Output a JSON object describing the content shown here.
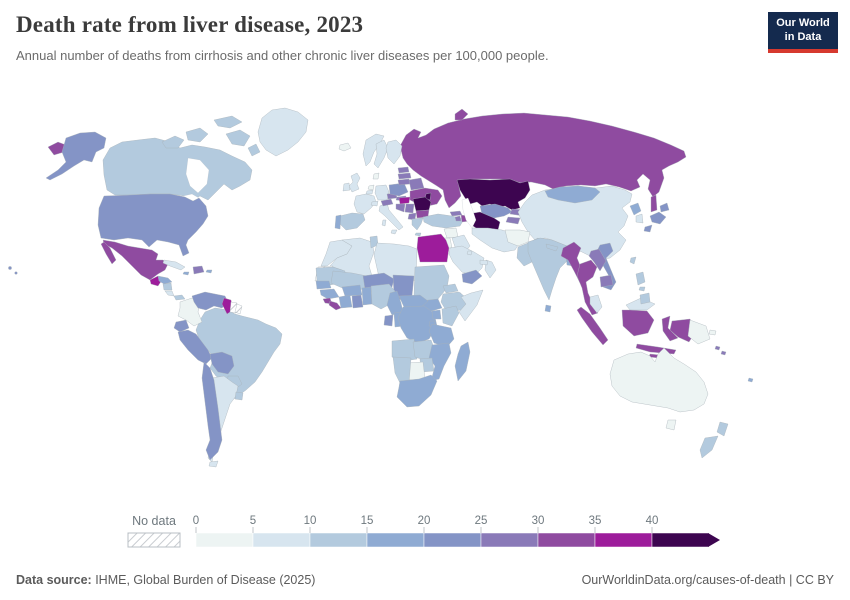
{
  "header": {
    "title": "Death rate from liver disease, 2023",
    "subtitle": "Annual number of deaths from cirrhosis and other chronic liver diseases per 100,000 people.",
    "logo": {
      "line1": "Our World",
      "line2": "in Data"
    }
  },
  "legend": {
    "no_data_label": "No data",
    "ticks": [
      "0",
      "5",
      "10",
      "15",
      "20",
      "25",
      "30",
      "35",
      "40"
    ]
  },
  "footer": {
    "source_label": "Data source:",
    "source_text": " IHME, Global Burden of Disease (2025)",
    "right_text": "OurWorldinData.org/causes-of-death | CC BY"
  },
  "chart_data": {
    "type": "choropleth",
    "title": "Death rate from liver disease, 2023",
    "subtitle": "Annual number of deaths from cirrhosis and other chronic liver diseases per 100,000 people.",
    "unit": "deaths per 100,000 people",
    "year": 2023,
    "legend_bins": [
      "0–5",
      "5–10",
      "10–15",
      "15–20",
      "20–25",
      "25–30",
      "30–35",
      "35–40",
      "40+"
    ],
    "palette": [
      "#edf4f3",
      "#d7e5ef",
      "#b3cade",
      "#8fabd3",
      "#8494c6",
      "#8a7ab8",
      "#8f4ba0",
      "#9d1c9b",
      "#3d0550"
    ],
    "no_data": {
      "label": "No data",
      "fill": "hatched"
    },
    "brand": {
      "navy": "#142a4e",
      "red": "#d6392f"
    },
    "countries": {
      "Canada": 2,
      "Greenland": 1,
      "United States": 4,
      "Mexico": 6,
      "Guatemala": 7,
      "Honduras": 3,
      "Nicaragua": 2,
      "Costa Rica": 1,
      "Panama": 2,
      "Cuba": 1,
      "Haiti": 5,
      "Jamaica": 3,
      "Puerto Rico": 3,
      "Colombia": 0,
      "Venezuela": 4,
      "Guyana": 7,
      "Suriname": "nd",
      "French Guiana": "nd",
      "Ecuador": 4,
      "Peru": 4,
      "Brazil": 2,
      "Bolivia": 4,
      "Paraguay": 2,
      "Chile": 4,
      "Argentina": 1,
      "Uruguay": 2,
      "Iceland": 0,
      "Norway": 1,
      "Sweden": 1,
      "Finland": 1,
      "Denmark": 0,
      "United Kingdom": 1,
      "Ireland": 1,
      "Netherlands": 0,
      "Belgium": 1,
      "Germany": 1,
      "France": 1,
      "Spain": 2,
      "Portugal": 3,
      "Switzerland": 1,
      "Italy": 1,
      "Austria": 5,
      "Czechia": 5,
      "Slovakia": 5,
      "Poland": 4,
      "Estonia": 5,
      "Latvia": 5,
      "Lithuania": 5,
      "Belarus": 5,
      "Ukraine": 6,
      "Moldova": 8,
      "Romania": 8,
      "Hungary": 7,
      "Croatia": 5,
      "Serbia": 5,
      "Albania": 5,
      "Bulgaria": 6,
      "Greece": 2,
      "Turkey": 2,
      "Georgia": 5,
      "Armenia": 5,
      "Azerbaijan": 6,
      "Syria": 0,
      "Jordan": 0,
      "Iraq": 1,
      "Iran": 1,
      "Afghanistan": 0,
      "Pakistan": 2,
      "Saudi Arabia": 1,
      "Yemen": 4,
      "Oman": 1,
      "United Arab Emirates": 1,
      "Kuwait": 1,
      "Russia": 6,
      "Kazakhstan": 8,
      "Uzbekistan": 4,
      "Turkmenistan": 8,
      "Kyrgyzstan": 5,
      "Tajikistan": 5,
      "India": 2,
      "Nepal": 2,
      "Bangladesh": 3,
      "Sri Lanka": 3,
      "China": 1,
      "Mongolia": 3,
      "North Korea": 3,
      "South Korea": 1,
      "Japan": 4,
      "Taiwan": 2,
      "Myanmar": 6,
      "Thailand": 6,
      "Laos": 5,
      "Vietnam": 4,
      "Cambodia": 5,
      "Malaysia": 1,
      "Philippines": 2,
      "Indonesia": 6,
      "Papua New Guinea": 0,
      "Australia": 0,
      "New Zealand": 2,
      "Solomon Islands": 5,
      "Fiji": 3,
      "Morocco": 1,
      "Western Sahara": "nd",
      "Algeria": 1,
      "Tunisia": 2,
      "Libya": 1,
      "Egypt": 7,
      "Mauritania": 2,
      "Mali": 2,
      "Senegal": 3,
      "Guinea": 3,
      "Sierra Leone": 6,
      "Liberia": 6,
      "Cote d'Ivoire": 3,
      "Ghana": 4,
      "Burkina Faso": 3,
      "Benin": 3,
      "Niger": 4,
      "Nigeria": 2,
      "Chad": 4,
      "Cameroon": 3,
      "Central African Republic": 3,
      "Sudan": 2,
      "South Sudan": 3,
      "Eritrea": 2,
      "Djibouti": 2,
      "Ethiopia": 2,
      "Somalia": 1,
      "Uganda": 3,
      "Kenya": 2,
      "Rwanda": 3,
      "Tanzania": 3,
      "Democratic Republic of Congo": 3,
      "Congo": 3,
      "Gabon": 4,
      "Angola": 2,
      "Zambia": 2,
      "Malawi": 3,
      "Mozambique": 3,
      "Zimbabwe": 2,
      "Botswana": 0,
      "Namibia": 2,
      "South Africa": 3,
      "Madagascar": 3
    }
  }
}
